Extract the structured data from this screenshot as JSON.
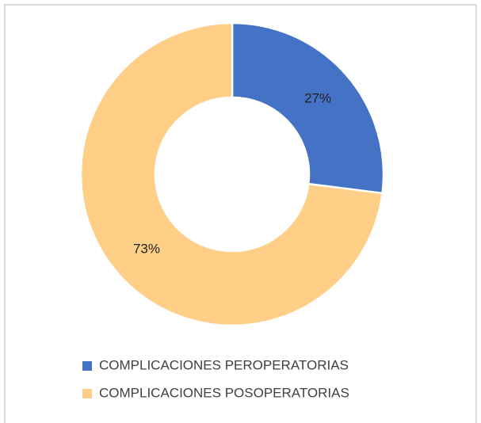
{
  "chart_data": {
    "type": "donut",
    "series": [
      {
        "name": "COMPLICACIONES PEROPERATORIAS",
        "color": "#4472c4"
      },
      {
        "name": "COMPLICACIONES POSOPERATORIAS",
        "color": "#ffcf87"
      }
    ],
    "values": [
      27,
      73
    ],
    "value_labels": [
      "27%",
      "73%"
    ],
    "legend": "bottom"
  }
}
